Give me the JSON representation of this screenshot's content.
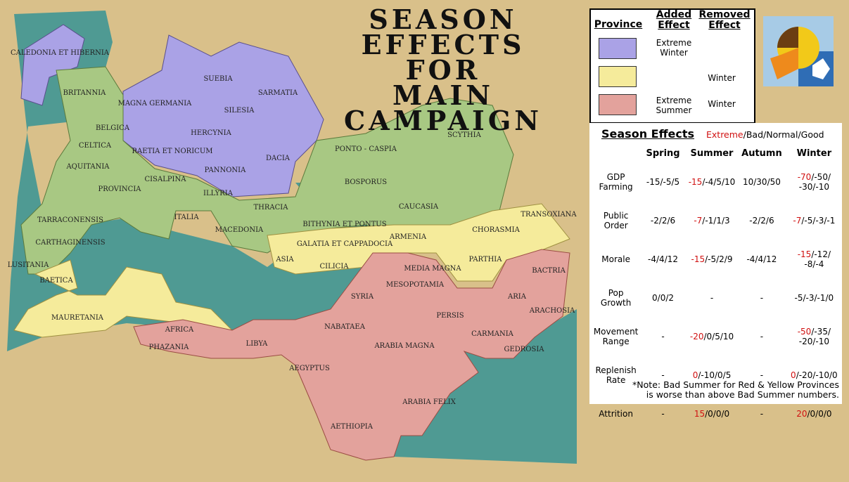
{
  "title": {
    "line1": "SEASON EFFECTS",
    "line2": "FOR",
    "line3": "MAIN CAMPAIGN"
  },
  "colors": {
    "extreme_winter": "#aaa2e6",
    "winter": "#f5eb9b",
    "extreme_summer": "#e3a29c",
    "extreme_text": "#d01010",
    "parchment": "#d9c08a",
    "sea": "#4f9a93"
  },
  "legend": {
    "headers": {
      "province": "Province",
      "added": "Added Effect",
      "removed": "Removed Effect"
    },
    "rows": [
      {
        "color": "#aaa2e6",
        "added": "Extreme Winter",
        "removed": ""
      },
      {
        "color": "#f5eb9b",
        "added": "",
        "removed": "Winter"
      },
      {
        "color": "#e3a29c",
        "added": "Extreme Summer",
        "removed": "Winter"
      }
    ]
  },
  "logo": {
    "icon": "seasons-sun-leaf-snow-logo"
  },
  "effects": {
    "title": "Season Effects",
    "key_extreme": "Extreme",
    "key_rest": "/Bad/Normal/Good",
    "columns": [
      "Spring",
      "Summer",
      "Autumn",
      "Winter"
    ],
    "rows": [
      {
        "label": "GDP Farming",
        "cells": [
          {
            "x": "",
            "r": "-15/-5/5"
          },
          {
            "x": "-15",
            "r": "/-4/5/10"
          },
          {
            "x": "",
            "r": "10/30/50"
          },
          {
            "x": "-70",
            "r": "/-50/ -30/-10"
          }
        ]
      },
      {
        "label": "Public Order",
        "cells": [
          {
            "x": "",
            "r": "-2/2/6"
          },
          {
            "x": "-7",
            "r": "/-1/1/3"
          },
          {
            "x": "",
            "r": "-2/2/6"
          },
          {
            "x": "-7",
            "r": "/-5/-3/-1"
          }
        ]
      },
      {
        "label": "Morale",
        "cells": [
          {
            "x": "",
            "r": "-4/4/12"
          },
          {
            "x": "-15",
            "r": "/-5/2/9"
          },
          {
            "x": "",
            "r": "-4/4/12"
          },
          {
            "x": "-15",
            "r": "/-12/ -8/-4"
          }
        ]
      },
      {
        "label": "Pop Growth",
        "cells": [
          {
            "x": "",
            "r": "0/0/2"
          },
          {
            "x": "",
            "r": "-"
          },
          {
            "x": "",
            "r": "-"
          },
          {
            "x": "",
            "r": "-5/-3/-1/0"
          }
        ]
      },
      {
        "label": "Movement Range",
        "cells": [
          {
            "x": "",
            "r": "-"
          },
          {
            "x": "-20",
            "r": "/0/5/10"
          },
          {
            "x": "",
            "r": "-"
          },
          {
            "x": "-50",
            "r": "/-35/ -20/-10"
          }
        ]
      },
      {
        "label": "Replenish Rate",
        "cells": [
          {
            "x": "",
            "r": "-"
          },
          {
            "x": "0",
            "r": "/-10/0/5"
          },
          {
            "x": "",
            "r": "-"
          },
          {
            "x": "0",
            "r": "/-20/-10/0"
          }
        ]
      },
      {
        "label": "Attrition",
        "cells": [
          {
            "x": "",
            "r": "-"
          },
          {
            "x": "15",
            "r": "/0/0/0"
          },
          {
            "x": "",
            "r": "-"
          },
          {
            "x": "20",
            "r": "/0/0/0"
          }
        ]
      }
    ],
    "note_line1": "*Note: Bad Summer for Red & Yellow Provinces",
    "note_line2": "is worse than above Bad Summer numbers."
  },
  "map": {
    "provinces": [
      {
        "name": "CALEDONIA ET HIBERNIA",
        "season": "extreme_winter"
      },
      {
        "name": "SUEBIA",
        "season": "extreme_winter"
      },
      {
        "name": "SARMATIA",
        "season": "extreme_winter"
      },
      {
        "name": "SILESIA",
        "season": "extreme_winter"
      },
      {
        "name": "HERCYNIA",
        "season": "extreme_winter"
      },
      {
        "name": "MAGNA GERMANIA",
        "season": "extreme_winter"
      },
      {
        "name": "RAETIA ET NORICUM",
        "season": "extreme_winter"
      },
      {
        "name": "PANNONIA",
        "season": "extreme_winter"
      },
      {
        "name": "DACIA",
        "season": "extreme_winter"
      },
      {
        "name": "BRITANNIA",
        "season": "normal"
      },
      {
        "name": "BELGICA",
        "season": "normal"
      },
      {
        "name": "CELTICA",
        "season": "normal"
      },
      {
        "name": "AQUITANIA",
        "season": "normal"
      },
      {
        "name": "PROVINCIA",
        "season": "normal"
      },
      {
        "name": "CISALPINA",
        "season": "normal"
      },
      {
        "name": "ITALIA",
        "season": "normal"
      },
      {
        "name": "ILLYRIA",
        "season": "normal"
      },
      {
        "name": "THRACIA",
        "season": "normal"
      },
      {
        "name": "MACEDONIA",
        "season": "normal"
      },
      {
        "name": "TARRACONENSIS",
        "season": "normal"
      },
      {
        "name": "CARTHAGINENSIS",
        "season": "normal"
      },
      {
        "name": "LUSITANIA",
        "season": "normal"
      },
      {
        "name": "PONTO - CASPIA",
        "season": "normal"
      },
      {
        "name": "SCYTHIA",
        "season": "normal"
      },
      {
        "name": "BOSPORUS",
        "season": "normal"
      },
      {
        "name": "CAUCASIA",
        "season": "normal"
      },
      {
        "name": "BITHYNIA ET PONTUS",
        "season": "normal"
      },
      {
        "name": "BAETICA",
        "season": "winter"
      },
      {
        "name": "MAURETANIA",
        "season": "winter"
      },
      {
        "name": "AFRICA",
        "season": "winter"
      },
      {
        "name": "ASIA",
        "season": "winter"
      },
      {
        "name": "GALATIA ET CAPPADOCIA",
        "season": "winter"
      },
      {
        "name": "CILICIA",
        "season": "winter"
      },
      {
        "name": "ARMENIA",
        "season": "winter"
      },
      {
        "name": "MEDIA MAGNA",
        "season": "winter"
      },
      {
        "name": "PARTHIA",
        "season": "winter"
      },
      {
        "name": "CHORASMIA",
        "season": "winter"
      },
      {
        "name": "TRANSOXIANA",
        "season": "winter"
      },
      {
        "name": "PHAZANIA",
        "season": "extreme_summer"
      },
      {
        "name": "LIBYA",
        "season": "extreme_summer"
      },
      {
        "name": "AEGYPTUS",
        "season": "extreme_summer"
      },
      {
        "name": "AETHIOPIA",
        "season": "extreme_summer"
      },
      {
        "name": "NABATAEA",
        "season": "extreme_summer"
      },
      {
        "name": "ARABIA MAGNA",
        "season": "extreme_summer"
      },
      {
        "name": "ARABIA FELIX",
        "season": "extreme_summer"
      },
      {
        "name": "SYRIA",
        "season": "extreme_summer"
      },
      {
        "name": "MESOPOTAMIA",
        "season": "extreme_summer"
      },
      {
        "name": "PERSIS",
        "season": "extreme_summer"
      },
      {
        "name": "CARMANIA",
        "season": "extreme_summer"
      },
      {
        "name": "GEDROSIA",
        "season": "extreme_summer"
      },
      {
        "name": "ARIA",
        "season": "extreme_summer"
      },
      {
        "name": "BACTRIA",
        "season": "extreme_summer"
      },
      {
        "name": "ARACHOSIA",
        "season": "extreme_summer"
      }
    ]
  }
}
